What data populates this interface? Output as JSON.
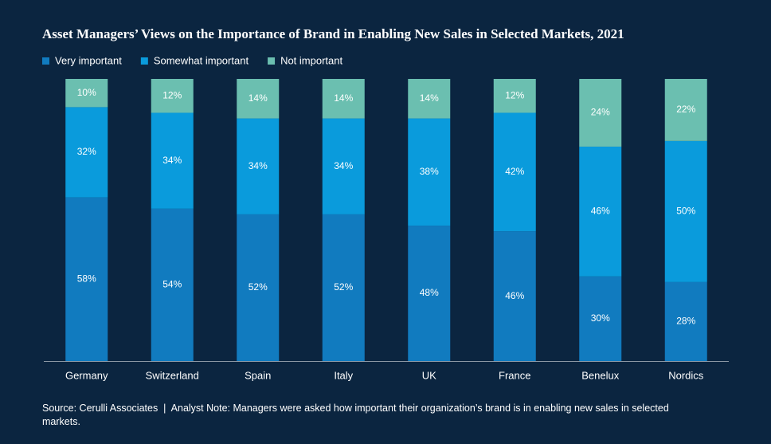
{
  "chart_data": {
    "type": "stacked_bar",
    "title": "Asset Managers’ Views on the Importance of Brand in Enabling New Sales in Selected Markets, 2021",
    "categories": [
      "Germany",
      "Switzerland",
      "Spain",
      "Italy",
      "UK",
      "France",
      "Benelux",
      "Nordics"
    ],
    "series": [
      {
        "name": "Very important",
        "color": "#117bbf",
        "values": [
          58,
          54,
          52,
          52,
          48,
          46,
          30,
          28
        ],
        "value_labels": [
          "58%",
          "54%",
          "52%",
          "52%",
          "48%",
          "46%",
          "30%",
          "28%"
        ]
      },
      {
        "name": "Somewhat important",
        "color": "#0a9bdc",
        "values": [
          32,
          34,
          34,
          34,
          38,
          42,
          46,
          50
        ],
        "value_labels": [
          "32%",
          "34%",
          "34%",
          "34%",
          "38%",
          "42%",
          "46%",
          "50%"
        ]
      },
      {
        "name": "Not important",
        "color": "#6bbfb0",
        "values": [
          10,
          12,
          14,
          14,
          14,
          12,
          24,
          22
        ],
        "value_labels": [
          "10%",
          "12%",
          "14%",
          "14%",
          "14%",
          "12%",
          "24%",
          "22%"
        ]
      }
    ],
    "source": "Source: Cerulli Associates  |  Analyst Note: Managers were asked how important their organization’s brand is in enabling new sales in selected markets."
  }
}
